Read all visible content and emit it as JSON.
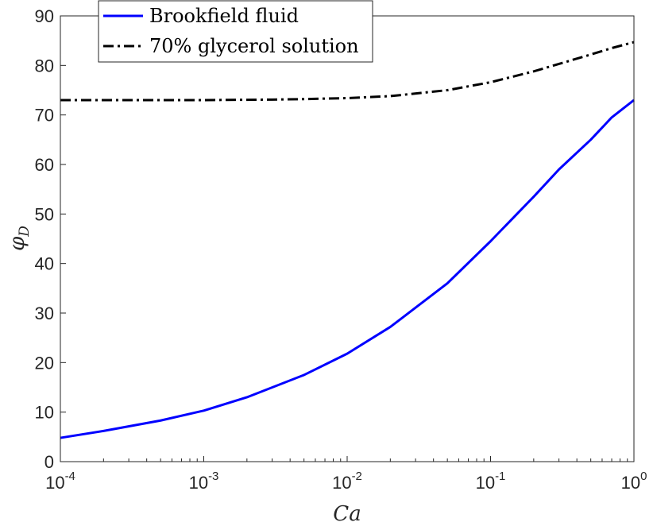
{
  "chart_data": {
    "type": "line",
    "xscale": "log",
    "xlim": [
      0.0001,
      1
    ],
    "ylim": [
      0,
      90
    ],
    "xlabel": "Ca",
    "ylabel_base": "φ",
    "ylabel_sub": "D",
    "xticks": [
      {
        "value": 0.0001,
        "base": "10",
        "exp": "-4"
      },
      {
        "value": 0.001,
        "base": "10",
        "exp": "-3"
      },
      {
        "value": 0.01,
        "base": "10",
        "exp": "-2"
      },
      {
        "value": 0.1,
        "base": "10",
        "exp": "-1"
      },
      {
        "value": 1,
        "base": "10",
        "exp": "0"
      }
    ],
    "yticks": [
      0,
      10,
      20,
      30,
      40,
      50,
      60,
      70,
      80,
      90
    ],
    "legend_position": "top-left",
    "grid": false,
    "series": [
      {
        "name": "Brookfield fluid",
        "color": "#0000ff",
        "dash": "solid",
        "x": [
          0.0001,
          0.0002,
          0.0005,
          0.001,
          0.002,
          0.005,
          0.01,
          0.02,
          0.05,
          0.1,
          0.2,
          0.3,
          0.5,
          0.7,
          1
        ],
        "y": [
          4.8,
          6.2,
          8.3,
          10.3,
          13.0,
          17.5,
          21.8,
          27.2,
          36.0,
          44.5,
          53.5,
          59.0,
          65.0,
          69.5,
          73.0
        ]
      },
      {
        "name": "70% glycerol solution",
        "color": "#000000",
        "dash": "dashdot",
        "x": [
          0.0001,
          0.0003,
          0.001,
          0.003,
          0.005,
          0.01,
          0.02,
          0.05,
          0.1,
          0.2,
          0.3,
          0.5,
          0.7,
          1
        ],
        "y": [
          73.0,
          73.0,
          73.0,
          73.1,
          73.2,
          73.4,
          73.8,
          75.0,
          76.6,
          78.8,
          80.3,
          82.2,
          83.5,
          84.7
        ]
      }
    ]
  }
}
